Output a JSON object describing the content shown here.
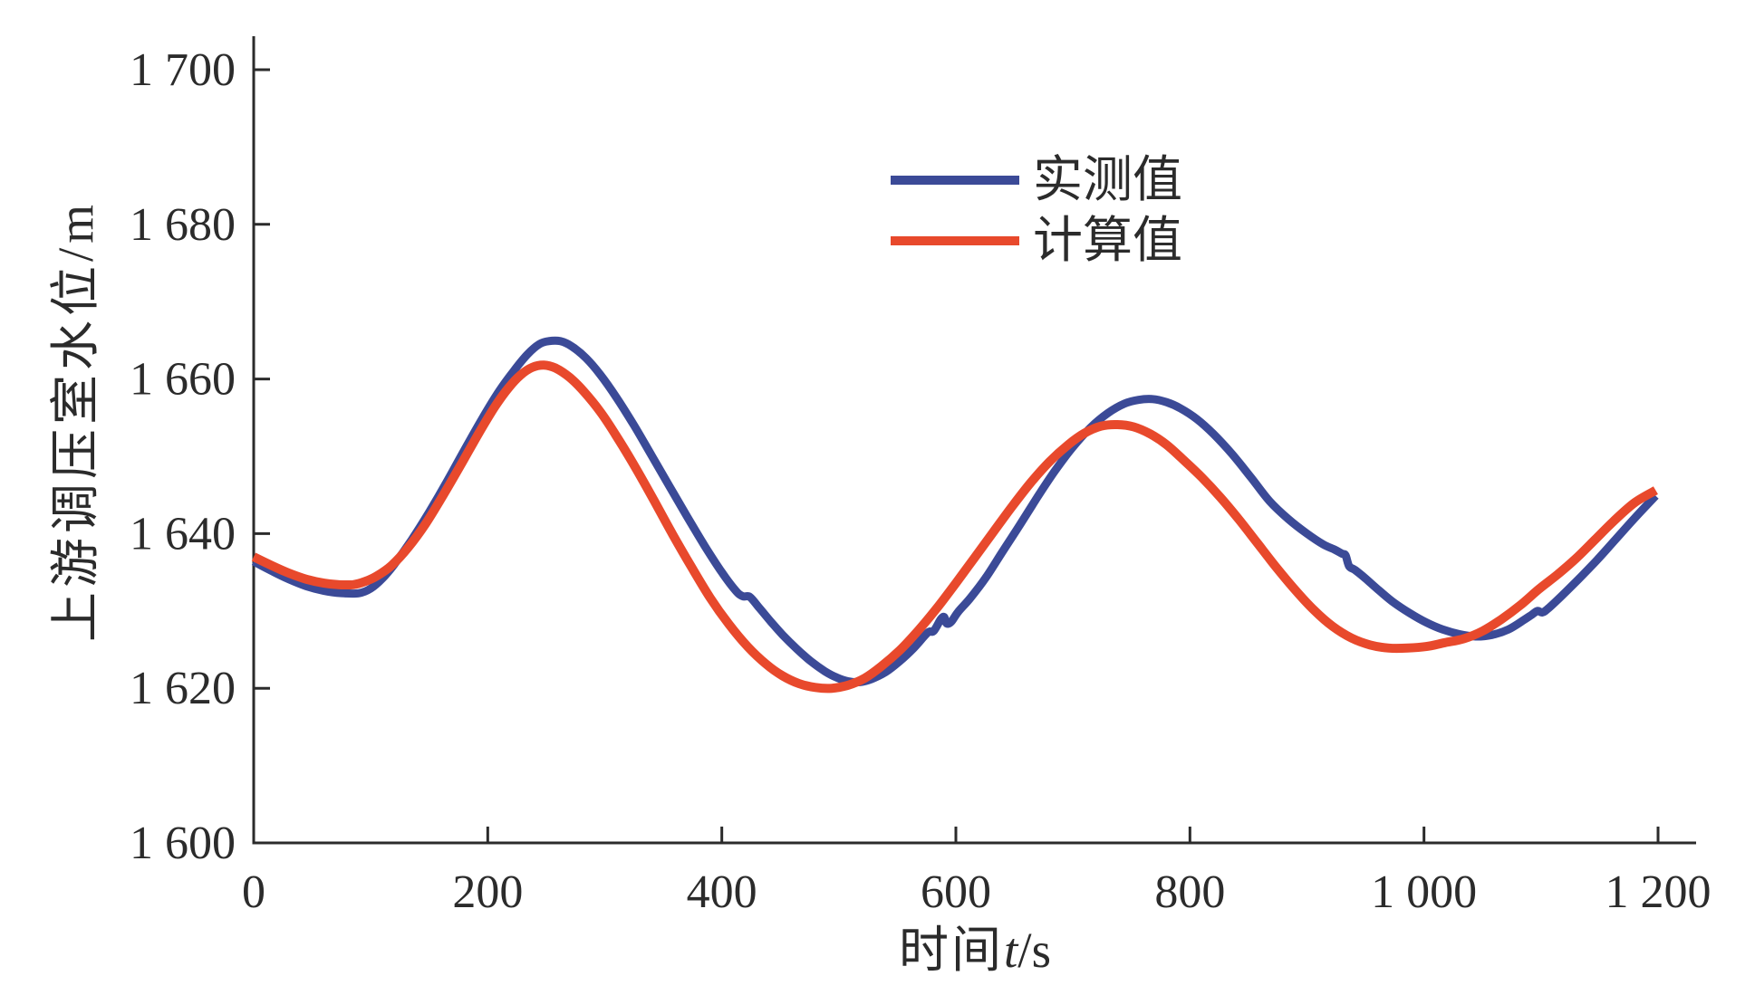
{
  "figure": {
    "background": "#ffffff",
    "axis_color": "#2b2b2b",
    "text_color": "#2b2b2b"
  },
  "axes": {
    "ylabel": "上游调压室水位/m",
    "xlabel": {
      "prefix": "时间",
      "variable": "t",
      "suffix": "/s",
      "full": "时间t/s"
    },
    "x_ticks": [
      {
        "value": 0,
        "label": "0"
      },
      {
        "value": 200,
        "label": "200"
      },
      {
        "value": 400,
        "label": "400"
      },
      {
        "value": 600,
        "label": "600"
      },
      {
        "value": 800,
        "label": "800"
      },
      {
        "value": 1000,
        "label": "1 000"
      },
      {
        "value": 1200,
        "label": "1 200"
      }
    ],
    "y_ticks": [
      {
        "value": 1600,
        "label": "1 600"
      },
      {
        "value": 1620,
        "label": "1 620"
      },
      {
        "value": 1640,
        "label": "1 640"
      },
      {
        "value": 1660,
        "label": "1 660"
      },
      {
        "value": 1680,
        "label": "1 680"
      },
      {
        "value": 1700,
        "label": "1 700"
      }
    ]
  },
  "legend": {
    "position": "upper center",
    "items": [
      {
        "label": "实测值",
        "color": "#3b4a97"
      },
      {
        "label": "计算值",
        "color": "#e8492c"
      }
    ]
  },
  "chart_data": {
    "type": "line",
    "title": "",
    "xlabel": "时间t/s",
    "ylabel": "上游调压室水位/m",
    "xlim": [
      0,
      1232
    ],
    "ylim": [
      1600,
      1704
    ],
    "x_tick_values": [
      0,
      200,
      400,
      600,
      800,
      1000,
      1200
    ],
    "y_tick_values": [
      1600,
      1620,
      1640,
      1660,
      1680,
      1700
    ],
    "grid": false,
    "legend_position": "upper center",
    "series": [
      {
        "name": "实测值",
        "color": "#3b4a97",
        "line_width": 9,
        "points": [
          [
            0,
            1636.4
          ],
          [
            15,
            1635.2
          ],
          [
            30,
            1634.1
          ],
          [
            45,
            1633.2
          ],
          [
            60,
            1632.6
          ],
          [
            75,
            1632.3
          ],
          [
            90,
            1632.3
          ],
          [
            100,
            1632.9
          ],
          [
            110,
            1634.2
          ],
          [
            120,
            1636.0
          ],
          [
            135,
            1639.2
          ],
          [
            150,
            1642.8
          ],
          [
            165,
            1646.7
          ],
          [
            180,
            1650.8
          ],
          [
            195,
            1654.8
          ],
          [
            210,
            1658.5
          ],
          [
            222,
            1661.0
          ],
          [
            234,
            1663.2
          ],
          [
            244,
            1664.5
          ],
          [
            252,
            1664.9
          ],
          [
            262,
            1664.9
          ],
          [
            272,
            1664.2
          ],
          [
            284,
            1662.7
          ],
          [
            296,
            1660.6
          ],
          [
            310,
            1657.6
          ],
          [
            325,
            1654.0
          ],
          [
            340,
            1650.1
          ],
          [
            355,
            1646.2
          ],
          [
            370,
            1642.3
          ],
          [
            385,
            1638.5
          ],
          [
            400,
            1635.0
          ],
          [
            412,
            1632.6
          ],
          [
            418,
            1631.9
          ],
          [
            424,
            1631.8
          ],
          [
            432,
            1630.4
          ],
          [
            442,
            1628.6
          ],
          [
            452,
            1626.9
          ],
          [
            464,
            1625.1
          ],
          [
            476,
            1623.5
          ],
          [
            488,
            1622.2
          ],
          [
            498,
            1621.4
          ],
          [
            508,
            1620.9
          ],
          [
            518,
            1620.8
          ],
          [
            528,
            1621.2
          ],
          [
            540,
            1622.1
          ],
          [
            552,
            1623.5
          ],
          [
            564,
            1625.2
          ],
          [
            576,
            1627.2
          ],
          [
            581,
            1627.4
          ],
          [
            587,
            1628.9
          ],
          [
            590,
            1629.2
          ],
          [
            592,
            1628.4
          ],
          [
            596,
            1628.6
          ],
          [
            602,
            1629.9
          ],
          [
            612,
            1631.6
          ],
          [
            626,
            1634.4
          ],
          [
            640,
            1637.7
          ],
          [
            655,
            1641.2
          ],
          [
            670,
            1644.8
          ],
          [
            685,
            1648.2
          ],
          [
            700,
            1651.2
          ],
          [
            715,
            1653.7
          ],
          [
            730,
            1655.6
          ],
          [
            744,
            1656.8
          ],
          [
            756,
            1657.3
          ],
          [
            768,
            1657.4
          ],
          [
            780,
            1657.0
          ],
          [
            792,
            1656.2
          ],
          [
            806,
            1654.8
          ],
          [
            820,
            1652.9
          ],
          [
            836,
            1650.3
          ],
          [
            852,
            1647.3
          ],
          [
            868,
            1644.2
          ],
          [
            884,
            1641.9
          ],
          [
            900,
            1640.0
          ],
          [
            914,
            1638.6
          ],
          [
            924,
            1637.9
          ],
          [
            930,
            1637.4
          ],
          [
            933,
            1637.2
          ],
          [
            936,
            1635.8
          ],
          [
            941,
            1635.3
          ],
          [
            950,
            1634.2
          ],
          [
            962,
            1632.6
          ],
          [
            974,
            1631.1
          ],
          [
            988,
            1629.7
          ],
          [
            1002,
            1628.5
          ],
          [
            1016,
            1627.6
          ],
          [
            1030,
            1627.0
          ],
          [
            1044,
            1626.7
          ],
          [
            1058,
            1626.9
          ],
          [
            1072,
            1627.6
          ],
          [
            1085,
            1628.8
          ],
          [
            1092,
            1629.5
          ],
          [
            1097,
            1630.0
          ],
          [
            1101,
            1629.8
          ],
          [
            1106,
            1630.3
          ],
          [
            1118,
            1632.0
          ],
          [
            1132,
            1634.1
          ],
          [
            1148,
            1636.6
          ],
          [
            1164,
            1639.3
          ],
          [
            1180,
            1642.0
          ],
          [
            1198,
            1644.9
          ]
        ]
      },
      {
        "name": "计算值",
        "color": "#e8492c",
        "line_width": 10,
        "points": [
          [
            0,
            1637.0
          ],
          [
            15,
            1635.9
          ],
          [
            30,
            1634.9
          ],
          [
            45,
            1634.1
          ],
          [
            60,
            1633.6
          ],
          [
            72,
            1633.4
          ],
          [
            85,
            1633.4
          ],
          [
            95,
            1633.8
          ],
          [
            105,
            1634.5
          ],
          [
            118,
            1635.9
          ],
          [
            132,
            1638.2
          ],
          [
            147,
            1641.3
          ],
          [
            162,
            1645.0
          ],
          [
            177,
            1648.9
          ],
          [
            192,
            1652.9
          ],
          [
            206,
            1656.4
          ],
          [
            218,
            1658.9
          ],
          [
            228,
            1660.5
          ],
          [
            238,
            1661.5
          ],
          [
            248,
            1661.8
          ],
          [
            258,
            1661.4
          ],
          [
            270,
            1660.2
          ],
          [
            282,
            1658.4
          ],
          [
            296,
            1655.8
          ],
          [
            310,
            1652.6
          ],
          [
            326,
            1648.6
          ],
          [
            342,
            1644.3
          ],
          [
            358,
            1639.9
          ],
          [
            374,
            1635.7
          ],
          [
            390,
            1631.7
          ],
          [
            406,
            1628.3
          ],
          [
            422,
            1625.4
          ],
          [
            438,
            1623.1
          ],
          [
            452,
            1621.6
          ],
          [
            466,
            1620.6
          ],
          [
            480,
            1620.1
          ],
          [
            494,
            1620.0
          ],
          [
            508,
            1620.4
          ],
          [
            522,
            1621.3
          ],
          [
            536,
            1622.8
          ],
          [
            552,
            1624.9
          ],
          [
            568,
            1627.5
          ],
          [
            584,
            1630.4
          ],
          [
            600,
            1633.6
          ],
          [
            616,
            1636.9
          ],
          [
            632,
            1640.2
          ],
          [
            648,
            1643.5
          ],
          [
            664,
            1646.6
          ],
          [
            680,
            1649.3
          ],
          [
            696,
            1651.5
          ],
          [
            710,
            1653.0
          ],
          [
            724,
            1653.9
          ],
          [
            738,
            1654.1
          ],
          [
            752,
            1653.8
          ],
          [
            766,
            1652.9
          ],
          [
            780,
            1651.5
          ],
          [
            794,
            1649.6
          ],
          [
            810,
            1647.3
          ],
          [
            826,
            1644.7
          ],
          [
            842,
            1641.8
          ],
          [
            858,
            1638.7
          ],
          [
            874,
            1635.6
          ],
          [
            890,
            1632.7
          ],
          [
            906,
            1630.1
          ],
          [
            922,
            1628.0
          ],
          [
            938,
            1626.5
          ],
          [
            954,
            1625.6
          ],
          [
            970,
            1625.2
          ],
          [
            986,
            1625.2
          ],
          [
            1002,
            1625.4
          ],
          [
            1018,
            1625.9
          ],
          [
            1034,
            1626.4
          ],
          [
            1050,
            1627.4
          ],
          [
            1066,
            1628.9
          ],
          [
            1082,
            1630.7
          ],
          [
            1098,
            1632.8
          ],
          [
            1114,
            1634.7
          ],
          [
            1130,
            1636.8
          ],
          [
            1146,
            1639.2
          ],
          [
            1162,
            1641.6
          ],
          [
            1180,
            1644.0
          ],
          [
            1198,
            1645.6
          ]
        ]
      }
    ]
  }
}
